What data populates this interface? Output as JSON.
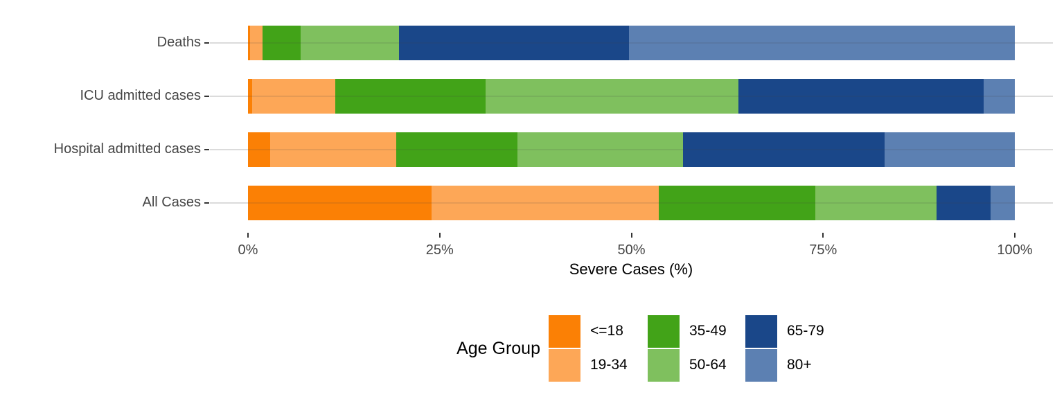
{
  "chart_data": {
    "type": "bar",
    "orientation": "horizontal",
    "stacked": true,
    "stack_unit": "percent",
    "xlabel": "Severe Cases (%)",
    "ylabel": "",
    "xlim": [
      0,
      100
    ],
    "x_tick_labels": [
      "0%",
      "25%",
      "50%",
      "75%",
      "100%"
    ],
    "x_tick_values": [
      0,
      25,
      50,
      75,
      100
    ],
    "grid": "horizontal-major-only",
    "categories": [
      "Deaths",
      "ICU admitted cases",
      "Hospital admitted cases",
      "All Cases"
    ],
    "legend_title": "Age Group",
    "legend_position": "bottom",
    "series": [
      {
        "name": "<=18",
        "color": "#FB8005",
        "values": [
          0.3,
          0.5,
          2.9,
          23.9
        ]
      },
      {
        "name": "19-34",
        "color": "#FDA757",
        "values": [
          1.6,
          10.9,
          16.4,
          29.7
        ]
      },
      {
        "name": "35-49",
        "color": "#42A318",
        "values": [
          5.0,
          19.6,
          15.8,
          20.4
        ]
      },
      {
        "name": "50-64",
        "color": "#7FC05E",
        "values": [
          12.8,
          33.0,
          21.6,
          15.8
        ]
      },
      {
        "name": "65-79",
        "color": "#1A4789",
        "values": [
          30.0,
          31.9,
          26.3,
          7.0
        ]
      },
      {
        "name": "80+",
        "color": "#5C80B2",
        "values": [
          50.3,
          4.1,
          17.0,
          3.2
        ]
      }
    ],
    "colors": {
      "gridline": "#dbdbdb",
      "tick": "#333333",
      "tick_label": "#454545",
      "axis_title": "#000000"
    }
  }
}
